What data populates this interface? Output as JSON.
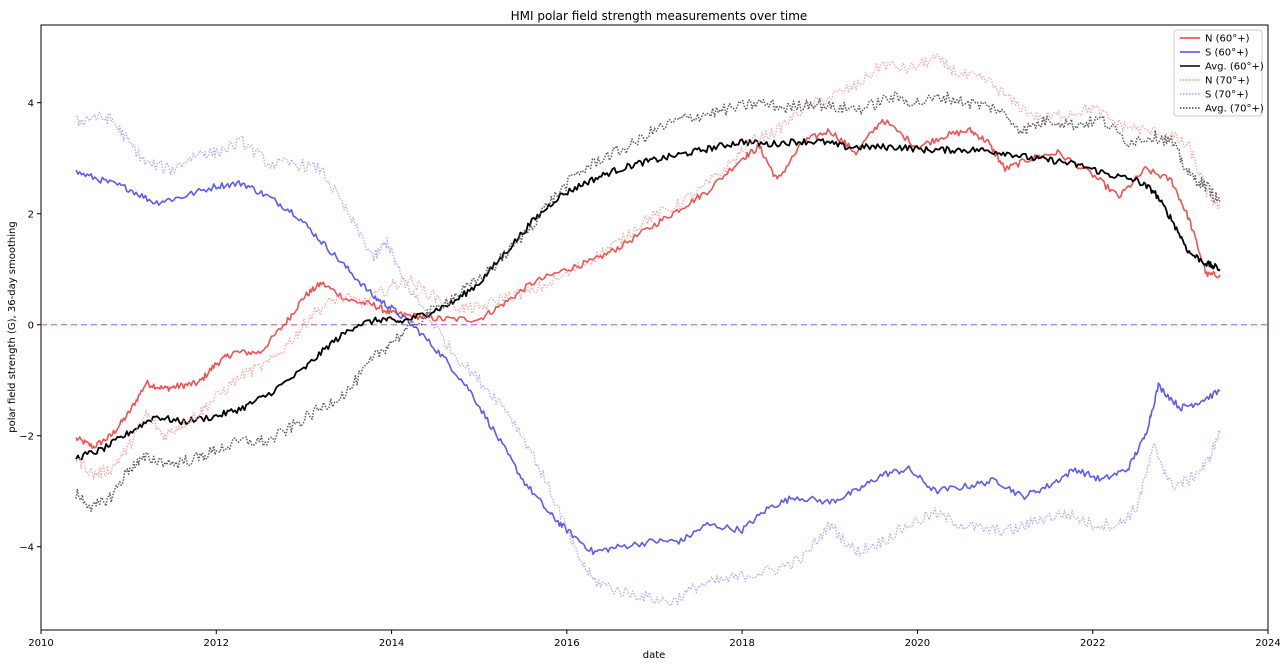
{
  "chart_data": {
    "type": "line",
    "title": "HMI polar field strength measurements over time",
    "xlabel": "date",
    "ylabel": "polar field strength (G), 36-day smoothing",
    "xlim": [
      2010.0,
      2024.0
    ],
    "ylim": [
      -5.5,
      5.4
    ],
    "xticks": [
      2010,
      2012,
      2014,
      2016,
      2018,
      2020,
      2022,
      2024
    ],
    "yticks": [
      -4,
      -2,
      0,
      2,
      4
    ],
    "xtick_labels": [
      "2010",
      "2012",
      "2014",
      "2016",
      "2018",
      "2020",
      "2022",
      "2024"
    ],
    "ytick_labels": [
      "−4",
      "−2",
      "0",
      "2",
      "4"
    ],
    "zero_line": {
      "y": 0,
      "color": "#c070d0",
      "style": "dashed"
    },
    "legend_placement": "top-right",
    "series": [
      {
        "name": "N (60°+)",
        "color": "#f04040",
        "style": "solid",
        "width": 1.6,
        "opacity": 0.9,
        "x": [
          2010.4,
          2010.6,
          2010.8,
          2011.0,
          2011.2,
          2011.4,
          2011.6,
          2011.8,
          2012.0,
          2012.2,
          2012.5,
          2012.8,
          2013.0,
          2013.2,
          2013.5,
          2013.8,
          2014.0,
          2014.3,
          2014.6,
          2015.0,
          2015.3,
          2015.6,
          2016.0,
          2016.3,
          2016.6,
          2017.0,
          2017.3,
          2017.6,
          2018.0,
          2018.2,
          2018.4,
          2018.7,
          2019.0,
          2019.3,
          2019.6,
          2020.0,
          2020.3,
          2020.6,
          2020.8,
          2021.0,
          2021.3,
          2021.6,
          2022.0,
          2022.3,
          2022.6,
          2022.9,
          2023.1,
          2023.3,
          2023.45
        ],
        "y": [
          -2.05,
          -2.2,
          -2.0,
          -1.6,
          -1.05,
          -1.15,
          -1.1,
          -1.05,
          -0.7,
          -0.5,
          -0.5,
          0.05,
          0.5,
          0.75,
          0.45,
          0.35,
          0.2,
          0.15,
          0.1,
          0.1,
          0.4,
          0.75,
          1.0,
          1.15,
          1.4,
          1.8,
          2.1,
          2.4,
          3.0,
          3.2,
          2.6,
          3.3,
          3.5,
          3.1,
          3.7,
          3.2,
          3.4,
          3.5,
          3.3,
          2.8,
          3.0,
          3.1,
          2.7,
          2.3,
          2.8,
          2.6,
          1.9,
          0.9,
          0.9
        ]
      },
      {
        "name": "S (60°+)",
        "color": "#4a4af0",
        "style": "solid",
        "width": 1.6,
        "opacity": 0.9,
        "x": [
          2010.4,
          2010.7,
          2011.0,
          2011.3,
          2011.6,
          2012.0,
          2012.3,
          2012.6,
          2012.9,
          2013.2,
          2013.5,
          2013.8,
          2014.0,
          2014.3,
          2014.6,
          2014.9,
          2015.2,
          2015.5,
          2015.8,
          2016.0,
          2016.3,
          2016.6,
          2017.0,
          2017.3,
          2017.6,
          2018.0,
          2018.3,
          2018.6,
          2019.0,
          2019.3,
          2019.6,
          2019.9,
          2020.2,
          2020.6,
          2020.9,
          2021.2,
          2021.5,
          2021.8,
          2022.1,
          2022.4,
          2022.6,
          2022.75,
          2023.0,
          2023.2,
          2023.45
        ],
        "y": [
          2.75,
          2.6,
          2.45,
          2.2,
          2.3,
          2.5,
          2.55,
          2.3,
          2.0,
          1.5,
          1.0,
          0.5,
          0.3,
          -0.1,
          -0.6,
          -1.2,
          -2.0,
          -2.8,
          -3.4,
          -3.7,
          -4.1,
          -4.0,
          -3.9,
          -3.9,
          -3.6,
          -3.7,
          -3.3,
          -3.1,
          -3.2,
          -3.0,
          -2.7,
          -2.6,
          -3.0,
          -2.9,
          -2.8,
          -3.1,
          -2.9,
          -2.6,
          -2.8,
          -2.6,
          -2.0,
          -1.1,
          -1.5,
          -1.4,
          -1.2
        ]
      },
      {
        "name": "Avg. (60°+)",
        "color": "#000000",
        "style": "solid",
        "width": 1.8,
        "opacity": 1,
        "x": [
          2010.4,
          2010.7,
          2011.0,
          2011.3,
          2011.6,
          2012.0,
          2012.3,
          2012.6,
          2013.0,
          2013.3,
          2013.6,
          2013.9,
          2014.1,
          2014.4,
          2014.7,
          2015.0,
          2015.3,
          2015.6,
          2015.9,
          2016.2,
          2016.5,
          2016.8,
          2017.1,
          2017.4,
          2017.7,
          2018.0,
          2018.3,
          2018.6,
          2018.9,
          2019.2,
          2019.5,
          2019.8,
          2020.1,
          2020.4,
          2020.7,
          2021.0,
          2021.3,
          2021.6,
          2021.9,
          2022.2,
          2022.5,
          2022.7,
          2022.9,
          2023.1,
          2023.3,
          2023.45
        ],
        "y": [
          -2.4,
          -2.25,
          -1.95,
          -1.65,
          -1.75,
          -1.65,
          -1.5,
          -1.25,
          -0.8,
          -0.35,
          0.0,
          0.1,
          0.05,
          0.2,
          0.4,
          0.75,
          1.3,
          1.85,
          2.3,
          2.55,
          2.75,
          2.9,
          3.0,
          3.1,
          3.2,
          3.3,
          3.25,
          3.3,
          3.3,
          3.2,
          3.2,
          3.2,
          3.15,
          3.15,
          3.15,
          3.1,
          3.0,
          2.95,
          2.85,
          2.7,
          2.6,
          2.4,
          1.9,
          1.3,
          1.1,
          1.0
        ]
      },
      {
        "name": "N (70°+)",
        "color": "#f49a9a",
        "style": "dotted",
        "width": 1.3,
        "opacity": 0.85,
        "x": [
          2010.4,
          2010.6,
          2010.8,
          2011.0,
          2011.2,
          2011.4,
          2011.6,
          2011.8,
          2012.0,
          2012.3,
          2012.6,
          2012.9,
          2013.1,
          2013.4,
          2013.7,
          2014.0,
          2014.2,
          2014.5,
          2014.8,
          2015.0,
          2015.3,
          2015.6,
          2016.0,
          2016.3,
          2016.6,
          2016.9,
          2017.2,
          2017.5,
          2017.8,
          2018.1,
          2018.4,
          2018.7,
          2019.0,
          2019.3,
          2019.6,
          2019.9,
          2020.2,
          2020.5,
          2020.8,
          2021.1,
          2021.4,
          2021.7,
          2022.0,
          2022.3,
          2022.6,
          2022.9,
          2023.1,
          2023.3,
          2023.45
        ],
        "y": [
          -2.4,
          -2.7,
          -2.6,
          -2.2,
          -1.6,
          -2.0,
          -1.8,
          -1.6,
          -1.3,
          -0.9,
          -0.7,
          -0.2,
          0.2,
          0.5,
          0.4,
          0.7,
          0.8,
          0.5,
          0.3,
          0.3,
          0.5,
          0.6,
          0.9,
          1.2,
          1.5,
          1.9,
          2.1,
          2.4,
          2.8,
          3.3,
          3.5,
          3.9,
          4.1,
          4.3,
          4.7,
          4.6,
          4.8,
          4.5,
          4.4,
          4.0,
          3.7,
          3.8,
          3.9,
          3.6,
          3.5,
          3.4,
          3.2,
          2.4,
          2.1
        ]
      },
      {
        "name": "S (70°+)",
        "color": "#a0a0f8",
        "style": "dotted",
        "width": 1.3,
        "opacity": 0.85,
        "x": [
          2010.4,
          2010.6,
          2010.8,
          2011.0,
          2011.2,
          2011.5,
          2011.8,
          2012.0,
          2012.3,
          2012.6,
          2012.9,
          2013.2,
          2013.5,
          2013.8,
          2013.95,
          2014.1,
          2014.4,
          2014.7,
          2015.0,
          2015.3,
          2015.6,
          2015.9,
          2016.1,
          2016.3,
          2016.6,
          2016.9,
          2017.2,
          2017.5,
          2017.8,
          2018.1,
          2018.4,
          2018.7,
          2019.0,
          2019.3,
          2019.6,
          2019.9,
          2020.2,
          2020.5,
          2020.8,
          2021.1,
          2021.4,
          2021.7,
          2022.0,
          2022.3,
          2022.5,
          2022.7,
          2022.9,
          2023.1,
          2023.3,
          2023.45
        ],
        "y": [
          3.65,
          3.75,
          3.7,
          3.3,
          2.9,
          2.8,
          3.1,
          3.1,
          3.3,
          2.9,
          2.9,
          2.8,
          2.0,
          1.2,
          1.5,
          0.9,
          0.2,
          -0.5,
          -1.0,
          -1.5,
          -2.3,
          -3.3,
          -4.1,
          -4.6,
          -4.8,
          -4.9,
          -5.0,
          -4.7,
          -4.6,
          -4.5,
          -4.4,
          -4.2,
          -3.6,
          -4.1,
          -3.9,
          -3.6,
          -3.4,
          -3.6,
          -3.7,
          -3.7,
          -3.5,
          -3.4,
          -3.6,
          -3.6,
          -3.3,
          -2.2,
          -2.9,
          -2.8,
          -2.5,
          -1.95
        ]
      },
      {
        "name": "Avg. (70°+)",
        "color": "#404040",
        "style": "dotted",
        "width": 1.5,
        "opacity": 0.85,
        "x": [
          2010.4,
          2010.6,
          2010.8,
          2011.0,
          2011.2,
          2011.5,
          2011.8,
          2012.0,
          2012.3,
          2012.6,
          2012.9,
          2013.2,
          2013.5,
          2013.8,
          2014.0,
          2014.3,
          2014.6,
          2014.9,
          2015.2,
          2015.5,
          2015.8,
          2016.1,
          2016.4,
          2016.7,
          2017.0,
          2017.3,
          2017.6,
          2017.9,
          2018.2,
          2018.5,
          2018.8,
          2019.1,
          2019.4,
          2019.7,
          2020.0,
          2020.3,
          2020.6,
          2020.9,
          2021.2,
          2021.5,
          2021.8,
          2022.1,
          2022.4,
          2022.7,
          2022.9,
          2023.1,
          2023.3,
          2023.45
        ],
        "y": [
          -3.05,
          -3.3,
          -3.1,
          -2.6,
          -2.4,
          -2.5,
          -2.4,
          -2.25,
          -2.1,
          -2.1,
          -1.8,
          -1.5,
          -1.2,
          -0.6,
          -0.3,
          0.05,
          0.4,
          0.7,
          1.1,
          1.6,
          2.2,
          2.7,
          3.0,
          3.2,
          3.5,
          3.7,
          3.8,
          3.9,
          4.0,
          3.9,
          4.0,
          3.9,
          3.9,
          4.1,
          4.0,
          4.1,
          4.0,
          3.9,
          3.5,
          3.7,
          3.6,
          3.7,
          3.3,
          3.4,
          3.3,
          2.7,
          2.5,
          2.2
        ]
      }
    ]
  }
}
